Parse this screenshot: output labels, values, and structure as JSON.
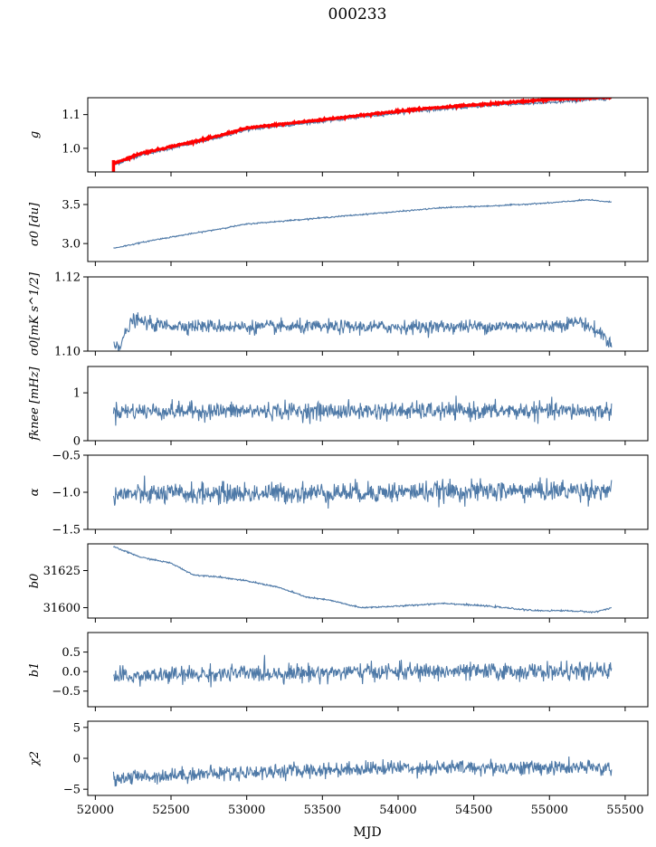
{
  "figure": {
    "title": "000233",
    "xlabel": "MJD"
  },
  "chart_data": {
    "type": "line",
    "xlim": [
      51950,
      55650
    ],
    "xticks": [
      52000,
      52500,
      53000,
      53500,
      54000,
      54500,
      55000,
      55500
    ],
    "x_range": [
      52120,
      55410
    ],
    "panels": [
      {
        "id": "g",
        "ylabel": "g",
        "ylim": [
          0.93,
          1.15
        ],
        "yticks": [
          1.0,
          1.1
        ],
        "ytick_labels": [
          "1.0",
          "1.1"
        ],
        "trend": [
          [
            52120,
            0.95
          ],
          [
            52300,
            0.98
          ],
          [
            52600,
            1.01
          ],
          [
            52800,
            1.03
          ],
          [
            53000,
            1.055
          ],
          [
            53200,
            1.065
          ],
          [
            53500,
            1.08
          ],
          [
            53800,
            1.095
          ],
          [
            54100,
            1.11
          ],
          [
            54400,
            1.12
          ],
          [
            54700,
            1.13
          ],
          [
            55000,
            1.135
          ],
          [
            55300,
            1.145
          ],
          [
            55410,
            1.148
          ]
        ],
        "noise": 0.002,
        "overlay": {
          "color": "#ff0000",
          "trend": [
            [
              52120,
              0.955
            ],
            [
              52300,
              0.985
            ],
            [
              52600,
              1.015
            ],
            [
              52800,
              1.035
            ],
            [
              53000,
              1.06
            ],
            [
              53200,
              1.07
            ],
            [
              53500,
              1.085
            ],
            [
              53800,
              1.1
            ],
            [
              54100,
              1.115
            ],
            [
              54400,
              1.125
            ],
            [
              54700,
              1.135
            ],
            [
              55000,
              1.145
            ],
            [
              55300,
              1.15
            ],
            [
              55410,
              1.152
            ]
          ],
          "spike": [
            52120,
            0.93,
            0.965
          ]
        }
      },
      {
        "id": "sigma0-du",
        "ylabel": "σ0 [du]",
        "ylim": [
          2.77,
          3.72
        ],
        "yticks": [
          3.0,
          3.5
        ],
        "ytick_labels": [
          "3.0",
          "3.5"
        ],
        "trend": [
          [
            52120,
            2.94
          ],
          [
            52400,
            3.05
          ],
          [
            52800,
            3.18
          ],
          [
            53000,
            3.25
          ],
          [
            53500,
            3.33
          ],
          [
            54000,
            3.41
          ],
          [
            54300,
            3.46
          ],
          [
            54600,
            3.48
          ],
          [
            55000,
            3.52
          ],
          [
            55250,
            3.56
          ],
          [
            55410,
            3.53
          ]
        ],
        "noise": 0.004
      },
      {
        "id": "sigma0-mk",
        "ylabel": "σ0[mK s^1/2]",
        "ylim": [
          1.1,
          1.12
        ],
        "yticks": [
          1.1,
          1.12
        ],
        "ytick_labels": [
          "1.10",
          "1.12"
        ],
        "trend": [
          [
            52120,
            1.1025
          ],
          [
            52160,
            1.1015
          ],
          [
            52250,
            1.1085
          ],
          [
            52400,
            1.107
          ],
          [
            53000,
            1.1065
          ],
          [
            54000,
            1.1065
          ],
          [
            55000,
            1.1068
          ],
          [
            55200,
            1.108
          ],
          [
            55350,
            1.1045
          ],
          [
            55410,
            1.1015
          ]
        ],
        "noise": 0.0009
      },
      {
        "id": "fknee",
        "ylabel": "fknee [mHz]",
        "ylim": [
          0,
          1.55
        ],
        "yticks": [
          0,
          1
        ],
        "ytick_labels": [
          "0",
          "1"
        ],
        "trend": [
          [
            52120,
            0.62
          ],
          [
            55410,
            0.62
          ]
        ],
        "noise": 0.09
      },
      {
        "id": "alpha",
        "ylabel": "α",
        "ylim": [
          -1.5,
          -0.5
        ],
        "yticks": [
          -1.5,
          -1.0,
          -0.5
        ],
        "ytick_labels": [
          "−1.5",
          "−1.0",
          "−0.5"
        ],
        "trend": [
          [
            52120,
            -1.03
          ],
          [
            55410,
            -0.97
          ]
        ],
        "noise": 0.07
      },
      {
        "id": "b0",
        "ylabel": "b0",
        "ylim": [
          31593,
          31643
        ],
        "yticks": [
          31600,
          31625
        ],
        "ytick_labels": [
          "31600",
          "31625"
        ],
        "trend": [
          [
            52120,
            31641
          ],
          [
            52300,
            31634
          ],
          [
            52500,
            31630
          ],
          [
            52650,
            31622
          ],
          [
            52800,
            31621
          ],
          [
            53000,
            31618
          ],
          [
            53200,
            31614
          ],
          [
            53400,
            31607
          ],
          [
            53550,
            31605
          ],
          [
            53750,
            31600
          ],
          [
            54000,
            31601
          ],
          [
            54300,
            31603
          ],
          [
            54600,
            31601
          ],
          [
            54900,
            31598
          ],
          [
            55100,
            31598
          ],
          [
            55300,
            31597
          ],
          [
            55410,
            31600
          ]
        ],
        "noise": 0.25
      },
      {
        "id": "b1",
        "ylabel": "b1",
        "ylim": [
          -0.9,
          1.0
        ],
        "yticks": [
          -0.5,
          0.0,
          0.5
        ],
        "ytick_labels": [
          "−0.5",
          "0.0",
          "0.5"
        ],
        "trend": [
          [
            52120,
            -0.15
          ],
          [
            52400,
            -0.1
          ],
          [
            53000,
            -0.05
          ],
          [
            54000,
            0.0
          ],
          [
            55000,
            0.0
          ],
          [
            55410,
            0.0
          ]
        ],
        "noise": 0.11
      },
      {
        "id": "chi2",
        "ylabel": "χ2",
        "ylim": [
          -6,
          6
        ],
        "yticks": [
          -5,
          0,
          5
        ],
        "ytick_labels": [
          "−5",
          "0",
          "5"
        ],
        "trend": [
          [
            52120,
            -3.2
          ],
          [
            52600,
            -2.6
          ],
          [
            53200,
            -2.1
          ],
          [
            54000,
            -1.5
          ],
          [
            55000,
            -1.5
          ],
          [
            55410,
            -1.6
          ]
        ],
        "noise": 0.6
      }
    ]
  }
}
